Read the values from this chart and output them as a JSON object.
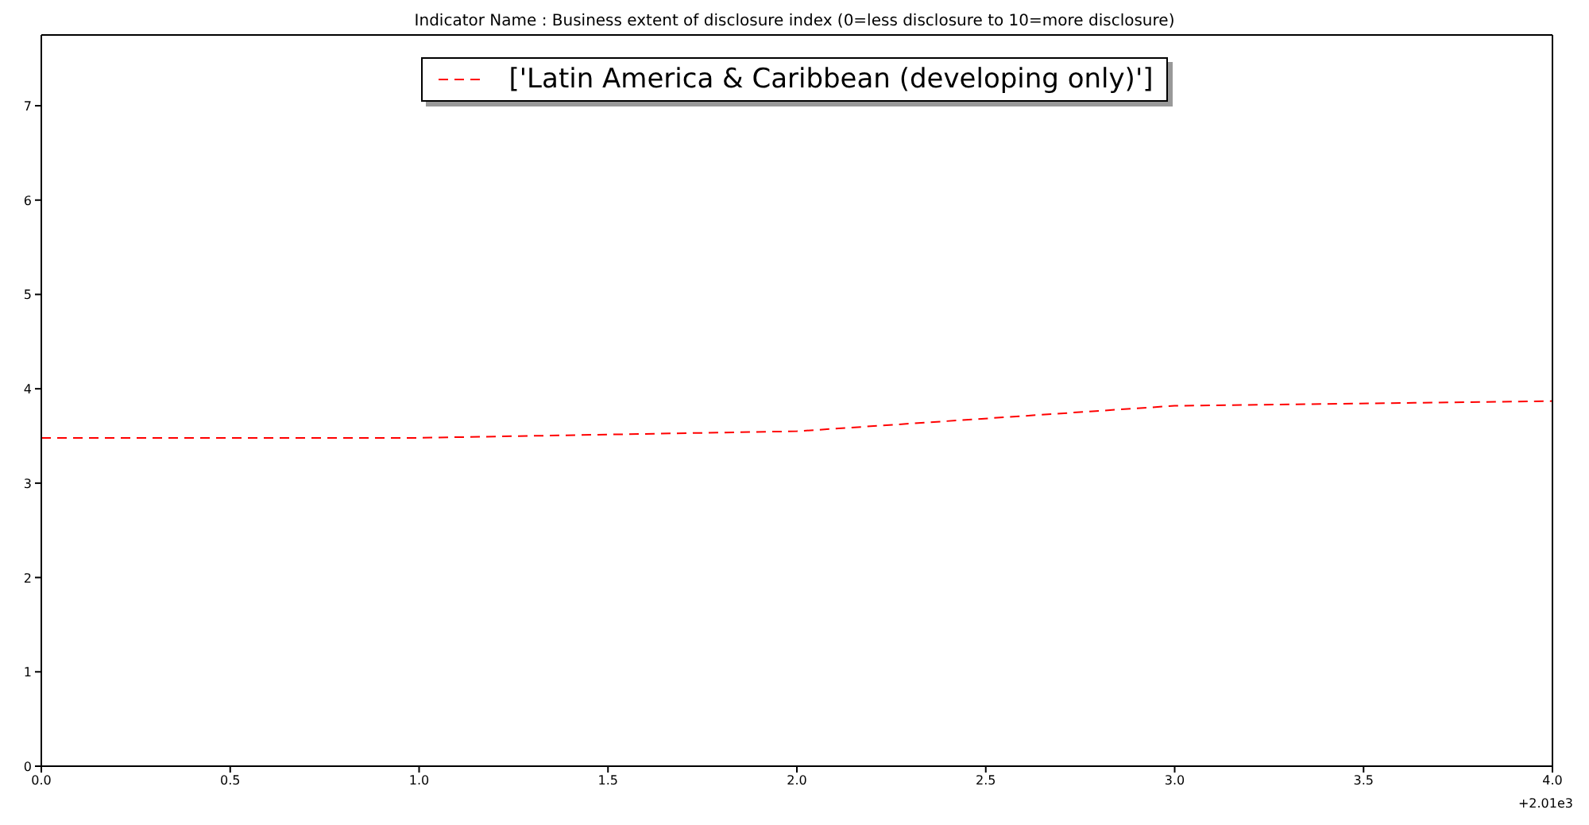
{
  "chart_data": {
    "type": "line",
    "title": "Indicator Name : Business extent of disclosure index (0=less disclosure to 10=more disclosure)",
    "x": [
      0,
      1,
      2,
      3,
      4
    ],
    "series": [
      {
        "name": "['Latin America & Caribbean (developing only)']",
        "color": "#ff0000",
        "values": [
          3.48,
          3.48,
          3.55,
          3.82,
          3.87
        ]
      }
    ],
    "xlim": [
      0,
      4
    ],
    "xticks": [
      {
        "value": 0,
        "label": "0.0"
      },
      {
        "value": 0.5,
        "label": "0.5"
      },
      {
        "value": 1,
        "label": "1.0"
      },
      {
        "value": 1.5,
        "label": "1.5"
      },
      {
        "value": 2,
        "label": "2.0"
      },
      {
        "value": 2.5,
        "label": "2.5"
      },
      {
        "value": 3,
        "label": "3.0"
      },
      {
        "value": 3.5,
        "label": "3.5"
      },
      {
        "value": 4,
        "label": "4.0"
      }
    ],
    "ylim": [
      0,
      7.75
    ],
    "yticks": [
      0,
      1,
      2,
      3,
      4,
      5,
      6,
      7
    ],
    "annotations": [
      "+2.01e3"
    ],
    "legend": "top",
    "line_style": "dashed",
    "marker": "none",
    "grid": false
  }
}
